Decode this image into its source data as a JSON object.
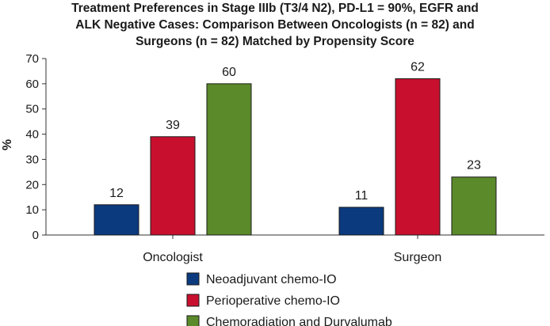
{
  "chart_data": {
    "type": "bar",
    "title_lines": [
      "Treatment Preferences in Stage IIIb (T3/4 N2), PD-L1 = 90%, EGFR and",
      "ALK Negative Cases: Comparison Between Oncologists (n = 82) and",
      "Surgeons (n = 82) Matched by Propensity Score"
    ],
    "ylabel": "%",
    "xlabel": "",
    "ylim": [
      0,
      70
    ],
    "yticks": [
      0,
      10,
      20,
      30,
      40,
      50,
      60,
      70
    ],
    "categories": [
      "Oncologist",
      "Surgeon"
    ],
    "series": [
      {
        "name": "Neoadjuvant chemo-IO",
        "color": "#0b3a7e",
        "values": [
          12,
          11
        ]
      },
      {
        "name": "Perioperative chemo-IO",
        "color": "#c8102e",
        "values": [
          39,
          62
        ]
      },
      {
        "name": "Chemoradiation and Durvalumab",
        "color": "#5a8a2a",
        "values": [
          60,
          23
        ]
      }
    ],
    "grid": false,
    "legend_position": "bottom-center"
  }
}
